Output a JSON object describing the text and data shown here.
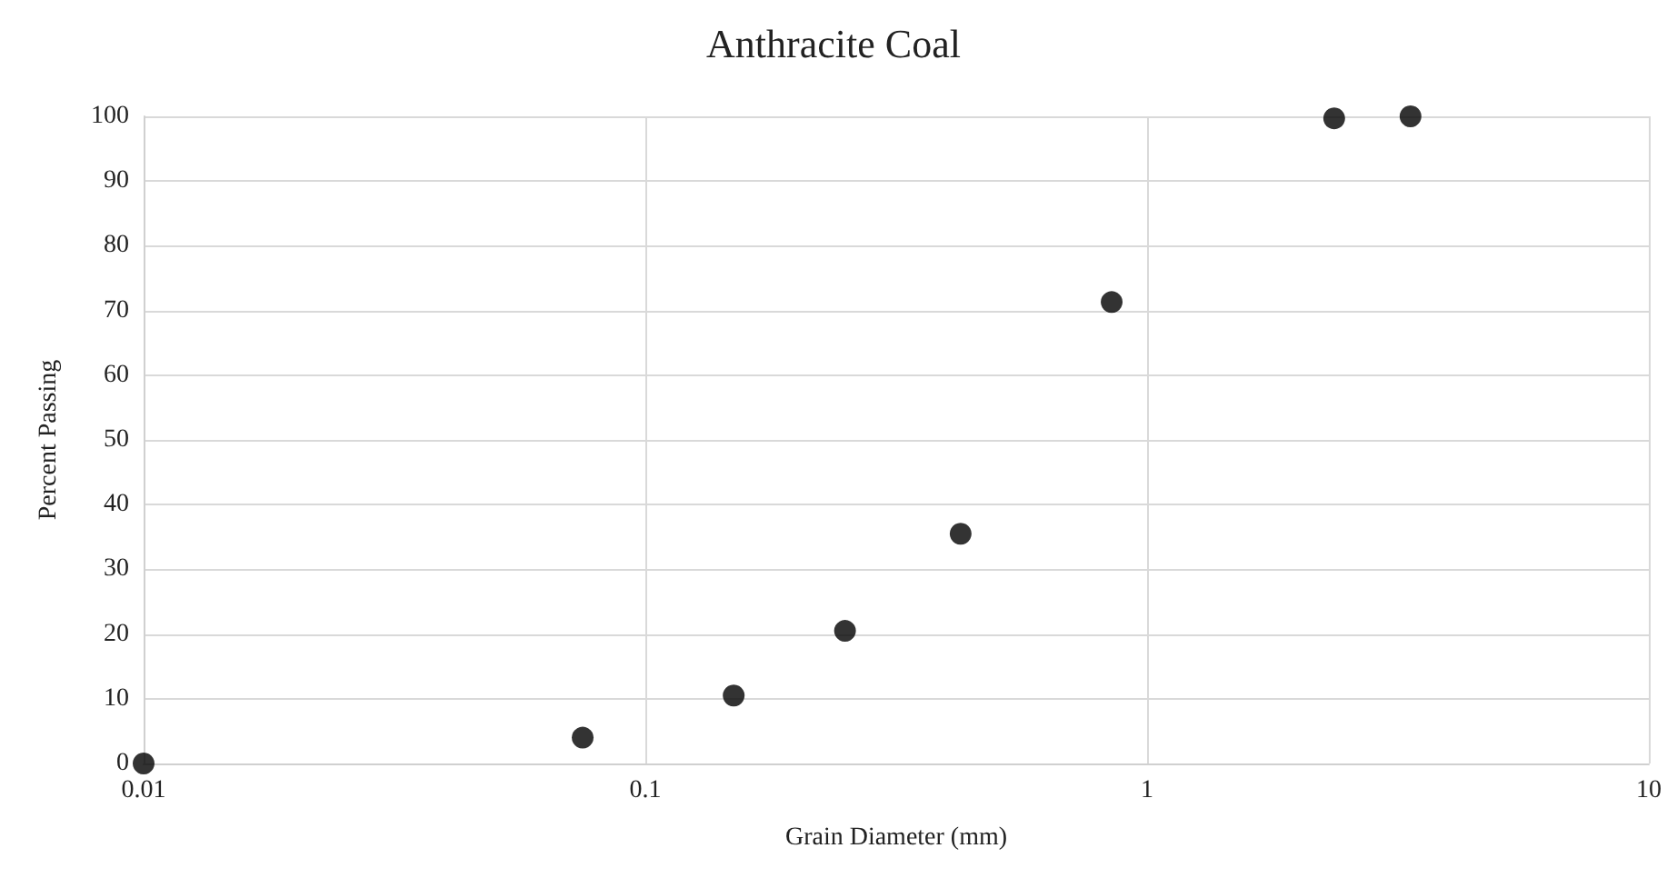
{
  "chart_data": {
    "type": "scatter",
    "title": "Anthracite Coal",
    "xlabel": "Grain Diameter (mm)",
    "ylabel": "Percent Passing",
    "x": [
      0.01,
      0.075,
      0.15,
      0.25,
      0.425,
      0.85,
      2.36,
      3.35
    ],
    "values": [
      0,
      4,
      10.5,
      20.5,
      35.5,
      71.3,
      99.7,
      100
    ],
    "color": "#000000",
    "marker": "circle",
    "log": "x",
    "grid": true,
    "xlim": [
      0.01,
      10
    ],
    "xticks": [
      0.01,
      0.1,
      1,
      10
    ],
    "ylim": [
      0,
      100
    ],
    "yticks": [
      0,
      10,
      20,
      30,
      40,
      50,
      60,
      70,
      80,
      90,
      100
    ]
  }
}
